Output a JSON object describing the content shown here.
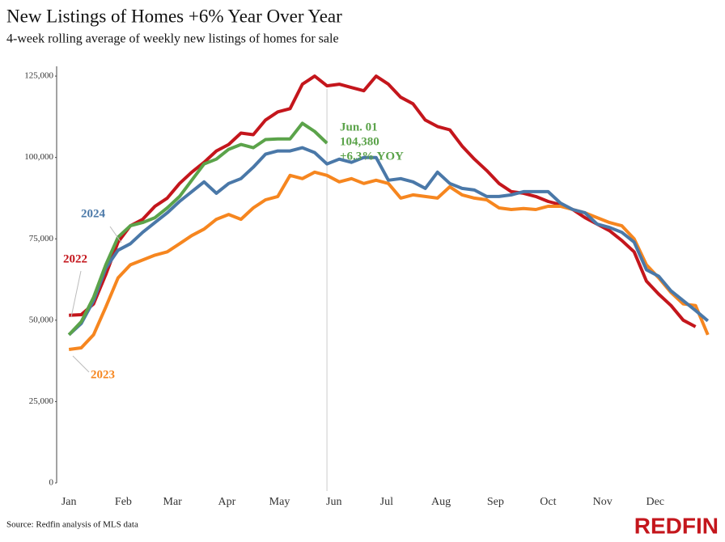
{
  "chart_data": {
    "type": "line",
    "title": "New Listings of Homes +6% Year Over Year",
    "subtitle": "4-week rolling average of weekly new listings of homes for sale",
    "source": "Source: Redfin analysis of MLS data",
    "brand": "REDFIN",
    "x": [
      1,
      8,
      15,
      22,
      29,
      36,
      43,
      50,
      57,
      64,
      71,
      78,
      85,
      92,
      99,
      106,
      113,
      120,
      127,
      134,
      141,
      148,
      155,
      162,
      169,
      176,
      183,
      190,
      197,
      204,
      211,
      218,
      225,
      232,
      239,
      246,
      253,
      260,
      267,
      274,
      281,
      288,
      295,
      302,
      309,
      316,
      323,
      330,
      337,
      344,
      351,
      358,
      365
    ],
    "xlim": [
      -6,
      372
    ],
    "xticks": [
      {
        "value": 1,
        "label": "Jan"
      },
      {
        "value": 32,
        "label": "Feb"
      },
      {
        "value": 60,
        "label": "Mar"
      },
      {
        "value": 91,
        "label": "Apr"
      },
      {
        "value": 121,
        "label": "May"
      },
      {
        "value": 152,
        "label": "Jun"
      },
      {
        "value": 182,
        "label": "Jul"
      },
      {
        "value": 213,
        "label": "Aug"
      },
      {
        "value": 244,
        "label": "Sep"
      },
      {
        "value": 274,
        "label": "Oct"
      },
      {
        "value": 305,
        "label": "Nov"
      },
      {
        "value": 335,
        "label": "Dec"
      }
    ],
    "ylim": [
      0,
      128000
    ],
    "yticks": [
      0,
      {
        "value": 25000,
        "label": "25,000"
      },
      {
        "value": 50000,
        "label": "50,000"
      },
      {
        "value": 75000,
        "label": "75,000"
      },
      {
        "value": 100000,
        "label": "100,000"
      },
      {
        "value": 125000,
        "label": "125,000"
      }
    ],
    "series": [
      {
        "name": "2022",
        "color": "#c4161c",
        "values": [
          51500,
          51700,
          55000,
          64000,
          74000,
          79000,
          81000,
          85000,
          87500,
          92000,
          95500,
          98500,
          102000,
          104000,
          107500,
          107000,
          111500,
          114000,
          115000,
          122500,
          125000,
          122000,
          122500,
          121500,
          120500,
          125000,
          122500,
          118500,
          116500,
          111500,
          109500,
          108500,
          103500,
          99500,
          96000,
          92000,
          89500,
          89000,
          88000,
          86500,
          85500,
          84000,
          81500,
          79500,
          77500,
          74500,
          71000,
          62000,
          58000,
          54500,
          50000,
          48000,
          null
        ]
      },
      {
        "name": "2023",
        "color": "#f6861f",
        "values": [
          41000,
          41500,
          45500,
          54000,
          63000,
          67000,
          68500,
          70000,
          71000,
          73500,
          76000,
          78000,
          81000,
          82500,
          81000,
          84500,
          87000,
          88000,
          94500,
          93500,
          95500,
          94500,
          92500,
          93500,
          92000,
          93000,
          92000,
          87500,
          88500,
          88000,
          87500,
          91000,
          88500,
          87500,
          87000,
          84500,
          84000,
          84300,
          84000,
          85000,
          85000,
          84000,
          83000,
          81500,
          80000,
          79000,
          75000,
          67000,
          63000,
          58500,
          55000,
          54500,
          45500
        ]
      },
      {
        "name": "2024",
        "color": "#4a78a8",
        "values": [
          45500,
          49000,
          56000,
          66000,
          71500,
          73500,
          77000,
          80000,
          83000,
          86500,
          89500,
          92500,
          89000,
          92000,
          93500,
          97000,
          101000,
          102000,
          102000,
          103000,
          101500,
          98000,
          99500,
          98500,
          100000,
          100000,
          93000,
          93500,
          92500,
          90500,
          95500,
          92000,
          90500,
          90000,
          88000,
          88000,
          88500,
          89500,
          89500,
          89500,
          86000,
          84000,
          83000,
          79500,
          78500,
          77000,
          74000,
          65500,
          63500,
          59000,
          56000,
          53000,
          49800
        ]
      },
      {
        "color": "#5ba34a",
        "values": [
          45500,
          49500,
          57000,
          67000,
          75500,
          79000,
          80000,
          81500,
          84500,
          88000,
          93000,
          98000,
          99500,
          102500,
          104000,
          103000,
          105500,
          105700,
          105700,
          110500,
          108000,
          104380,
          null,
          null,
          null,
          null,
          null,
          null,
          null,
          null,
          null,
          null,
          null,
          null,
          null,
          null,
          null,
          null,
          null,
          null,
          null,
          null,
          null,
          null,
          null,
          null,
          null,
          null,
          null,
          null,
          null,
          null,
          null
        ]
      }
    ],
    "annotation": [
      "Jun. 01",
      "104,380",
      "+6.3% YOY"
    ]
  }
}
